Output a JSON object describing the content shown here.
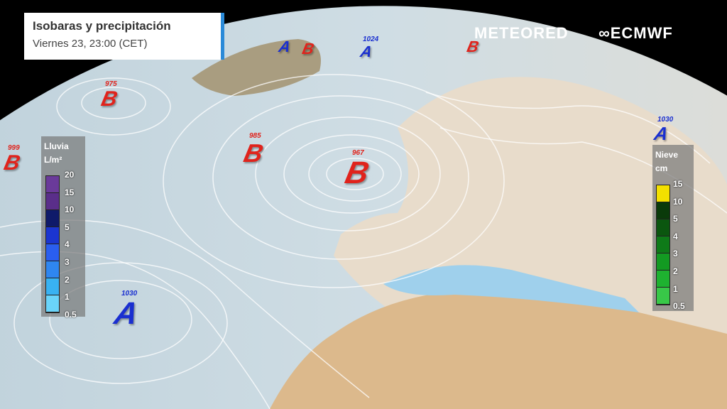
{
  "header": {
    "title": "Isobaras y precipitación",
    "subtitle": "Viernes 23, 23:00 (CET)"
  },
  "brands": {
    "meteored": "METEORED",
    "ecmwf": "ECMWF"
  },
  "colors": {
    "low": "#e0231c",
    "high": "#1a2fd0",
    "accent": "#2a8ad8"
  },
  "rain_legend": {
    "title": "Lluvia",
    "unit": "L/m²",
    "ticks": [
      "20",
      "15",
      "10",
      "5",
      "4",
      "3",
      "2",
      "1",
      "0.5"
    ],
    "colors": [
      "#6a3a9a",
      "#5a2e8a",
      "#0f1a6a",
      "#1b35d0",
      "#2a5ef0",
      "#2f86f0",
      "#39b2f2",
      "#6ad4fa"
    ]
  },
  "snow_legend": {
    "title": "Nieve",
    "unit": "cm",
    "ticks": [
      "15",
      "10",
      "5",
      "4",
      "3",
      "2",
      "1",
      "0.5"
    ],
    "colors": [
      "#f3e000",
      "#0a3a0a",
      "#0b560f",
      "#0e7a18",
      "#139a22",
      "#1eb230",
      "#38c848"
    ]
  },
  "pressure_centers": [
    {
      "type": "B",
      "value": "967",
      "color": "low"
    },
    {
      "type": "B",
      "value": "985",
      "color": "low"
    },
    {
      "type": "B",
      "value": "975",
      "color": "low"
    },
    {
      "type": "B",
      "value": "999",
      "color": "low"
    },
    {
      "type": "A",
      "value": "1030",
      "color": "high"
    },
    {
      "type": "A",
      "value": "1024",
      "color": "high"
    },
    {
      "type": "A",
      "value": "1030",
      "color": "high"
    },
    {
      "type": "A",
      "value": "",
      "color": "high"
    },
    {
      "type": "B",
      "value": "",
      "color": "low"
    },
    {
      "type": "B",
      "value": "",
      "color": "low"
    }
  ]
}
